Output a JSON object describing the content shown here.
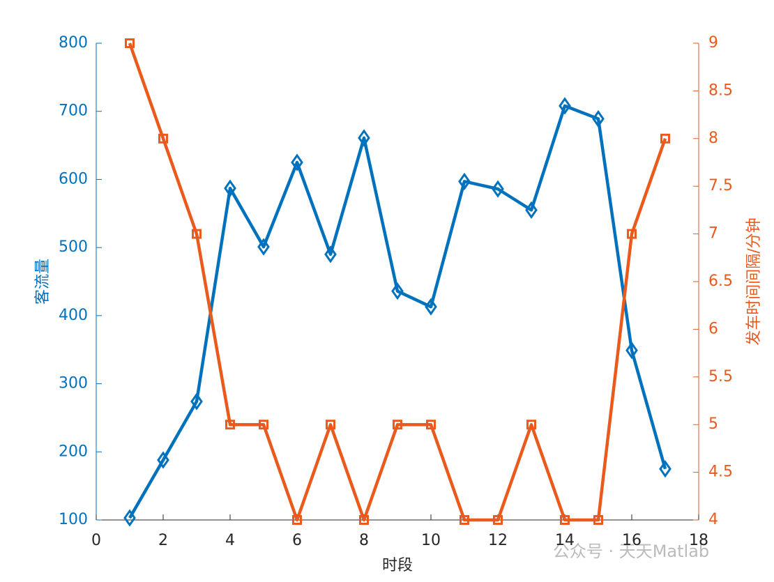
{
  "chart_data": {
    "type": "line",
    "x": [
      1,
      2,
      3,
      4,
      5,
      6,
      7,
      8,
      9,
      10,
      11,
      12,
      13,
      14,
      15,
      16,
      17
    ],
    "xlabel": "时段",
    "ylabel": "客流量",
    "y2label": "发车时间间隔/分钟",
    "xlim": [
      0,
      18
    ],
    "xticks": [
      0,
      2,
      4,
      6,
      8,
      10,
      12,
      14,
      16,
      18
    ],
    "ylim": [
      100,
      800
    ],
    "yticks": [
      100,
      200,
      300,
      400,
      500,
      600,
      700,
      800
    ],
    "y2lim": [
      4,
      9
    ],
    "y2ticks": [
      4,
      4.5,
      5,
      5.5,
      6,
      6.5,
      7,
      7.5,
      8,
      8.5,
      9
    ],
    "series": [
      {
        "name": "客流量",
        "color": "#0072bd",
        "marker": "diamond",
        "values": [
          103,
          188,
          274,
          587,
          501,
          625,
          490,
          661,
          436,
          413,
          597,
          586,
          555,
          708,
          689,
          349,
          175
        ]
      },
      {
        "name": "发车时间间隔",
        "color": "#ea5a1c",
        "marker": "square",
        "axis": "y2",
        "values": [
          9,
          8,
          7,
          5,
          5,
          4,
          5,
          4,
          5,
          5,
          4,
          4,
          5,
          4,
          4,
          7,
          8
        ]
      }
    ],
    "watermark": "公众号 · 天天Matlab"
  }
}
